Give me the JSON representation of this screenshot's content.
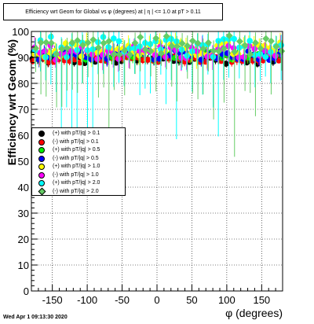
{
  "title": "Efficiency wrt Geom for Global vs φ (degrees) at | η | <= 1.0 at pT > 0.11",
  "footer": "Wed Apr  1 09:13:30 2020",
  "chart_data": {
    "type": "scatter",
    "xlabel": "φ (degrees)",
    "ylabel": "Efficiency wrt Geom (%)",
    "xlim": [
      -180,
      180
    ],
    "ylim": [
      0,
      100
    ],
    "xticks": [
      -150,
      -100,
      -50,
      0,
      50,
      100,
      150
    ],
    "yticks": [
      0,
      10,
      20,
      30,
      40,
      50,
      60,
      70,
      80,
      90,
      100
    ],
    "grid": true,
    "legend_position": "left-middle",
    "series": [
      {
        "name": "(+) with pT/|q| > 0.1",
        "color": "#000000",
        "marker": "circle",
        "level": 89,
        "spread": 1.5,
        "errlo": 2
      },
      {
        "name": "(-) with pT/|q| > 0.1",
        "color": "#ff0000",
        "marker": "circle",
        "level": 89.5,
        "spread": 1.5,
        "errlo": 2
      },
      {
        "name": "(+) with pT/|q| > 0.5",
        "color": "#00ee00",
        "marker": "circle",
        "level": 91,
        "spread": 2,
        "errlo": 3
      },
      {
        "name": "(-) with pT/|q| > 0.5",
        "color": "#0000ff",
        "marker": "circle",
        "level": 91,
        "spread": 2,
        "errlo": 3
      },
      {
        "name": "(+) with pT/|q| > 1.0",
        "color": "#ffff00",
        "marker": "circle",
        "level": 93,
        "spread": 3,
        "errlo": 6
      },
      {
        "name": "(-) with pT/|q| > 1.0",
        "color": "#ff00ff",
        "marker": "circle",
        "level": 92,
        "spread": 3,
        "errlo": 6
      },
      {
        "name": "(+) with pT/|q| > 2.0",
        "color": "#00ffff",
        "marker": "circle",
        "level": 94,
        "spread": 4,
        "errlo": 20
      },
      {
        "name": "(-) with pT/|q| > 2.0",
        "color": "#66cc66",
        "marker": "diamond",
        "level": 95,
        "spread": 4,
        "errlo": 22
      }
    ]
  }
}
